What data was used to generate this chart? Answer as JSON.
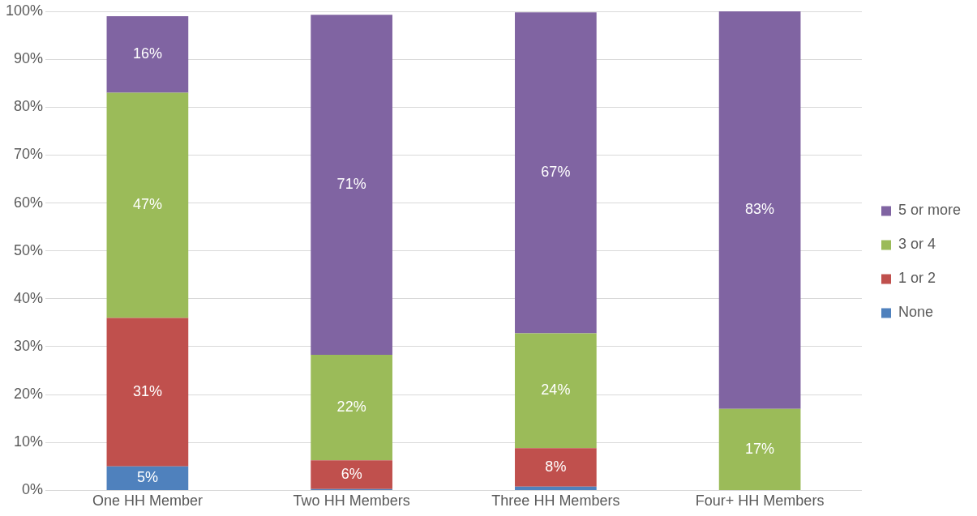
{
  "chart_data": {
    "type": "bar",
    "stacked": true,
    "categories": [
      "One HH Member",
      "Two HH Members",
      "Three HH Members",
      "Four+ HH Members"
    ],
    "series": [
      {
        "name": "None",
        "color": "#4f81bd",
        "values": [
          5,
          0.3,
          0.8,
          null
        ],
        "value_labels": [
          "5%",
          null,
          null,
          null
        ]
      },
      {
        "name": "1 or 2",
        "color": "#c0504d",
        "values": [
          31,
          6,
          8,
          null
        ],
        "value_labels": [
          "31%",
          "6%",
          "8%",
          null
        ]
      },
      {
        "name": "3 or 4",
        "color": "#9bbb59",
        "values": [
          47,
          22,
          24,
          17
        ],
        "value_labels": [
          "47%",
          "22%",
          "24%",
          "17%"
        ]
      },
      {
        "name": "5 or more",
        "color": "#8064a2",
        "values": [
          16,
          71,
          67,
          83
        ],
        "value_labels": [
          "16%",
          "71%",
          "67%",
          "83%"
        ]
      }
    ],
    "ylim": [
      0,
      100
    ],
    "yticks": [
      {
        "value": 0,
        "label": "0%"
      },
      {
        "value": 10,
        "label": "10%"
      },
      {
        "value": 20,
        "label": "20%"
      },
      {
        "value": 30,
        "label": "30%"
      },
      {
        "value": 40,
        "label": "40%"
      },
      {
        "value": 50,
        "label": "50%"
      },
      {
        "value": 60,
        "label": "60%"
      },
      {
        "value": 70,
        "label": "70%"
      },
      {
        "value": 80,
        "label": "80%"
      },
      {
        "value": 90,
        "label": "90%"
      },
      {
        "value": 100,
        "label": "100%"
      }
    ],
    "grid": "y",
    "legend": "right"
  }
}
